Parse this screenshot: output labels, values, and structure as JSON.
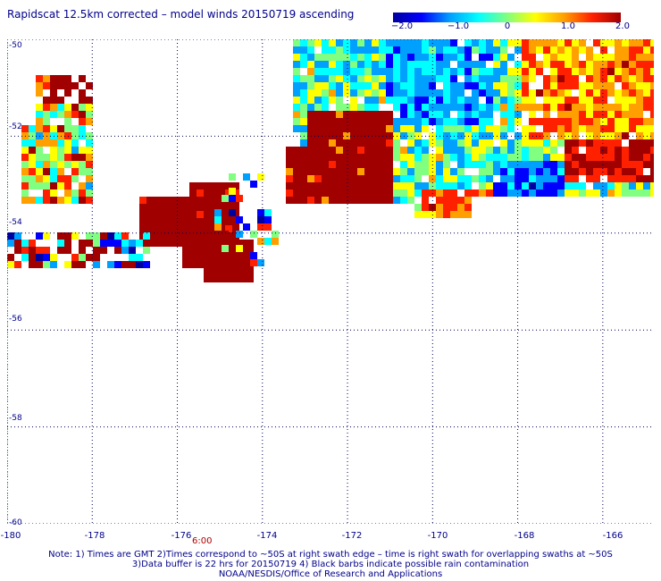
{
  "title": "Rapidscat 12.5km corrected – model winds 20150719 ascending",
  "colorbar": {
    "ticks": [
      "−2.0",
      "−1.0",
      "0",
      "1.0",
      "2.0"
    ],
    "tick_values": [
      -2.0,
      -1.0,
      0,
      1.0,
      2.0
    ],
    "colors": [
      "#0000a0",
      "#0000ff",
      "#00a0ff",
      "#00ffff",
      "#80ff80",
      "#ffff00",
      "#ffa000",
      "#ff2000",
      "#a00000"
    ]
  },
  "axes": {
    "lon_labels": [
      "-180",
      "-178",
      "-176",
      "-174",
      "-172",
      "-170",
      "-168",
      "-166"
    ],
    "lon_values": [
      -180,
      -178,
      -176,
      -174,
      -172,
      -170,
      -168,
      -166
    ],
    "lat_labels": [
      "-50",
      "-52",
      "-54",
      "-56",
      "-58",
      "-60"
    ],
    "lat_values": [
      -50,
      -52,
      -54,
      -56,
      -58,
      -60
    ],
    "lon_range": [
      -180,
      -164.8
    ],
    "lat_range": [
      -60,
      -50
    ]
  },
  "time_label": "6:00",
  "notes": {
    "line1": "Note: 1) Times are GMT 2)Times correspond to ~50S at right swath edge – time is right swath for overlapping swaths at ~50S",
    "line2": "3)Data buffer is 22 hrs for 20150719 4) Black barbs indicate possible rain contamination",
    "line3": "NOAA/NESDIS/Office of Research and Applications"
  }
}
